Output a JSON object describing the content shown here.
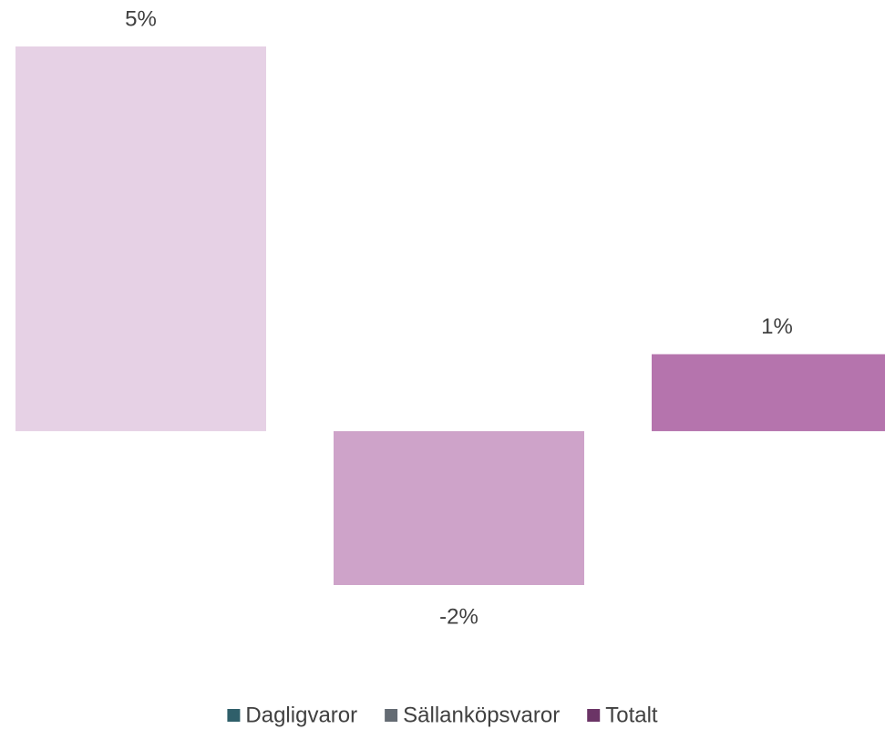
{
  "chart_data": {
    "type": "bar",
    "series": [
      {
        "name": "Dagligvaror",
        "legend_color": "#2f5f6a",
        "color": "#e6d1e5",
        "values": [
          5
        ],
        "value_labels": [
          "5%"
        ]
      },
      {
        "name": "Sällanköpsvaror",
        "legend_color": "#646b73",
        "color": "#cea3c9",
        "values": [
          -2
        ],
        "value_labels": [
          "-2%"
        ]
      },
      {
        "name": "Totalt",
        "legend_color": "#6b3466",
        "color": "#b574ad",
        "values": [
          1
        ],
        "value_labels": [
          "1%"
        ]
      }
    ],
    "ylim": [
      -2,
      5
    ],
    "grid": false,
    "legend": "bottom"
  }
}
